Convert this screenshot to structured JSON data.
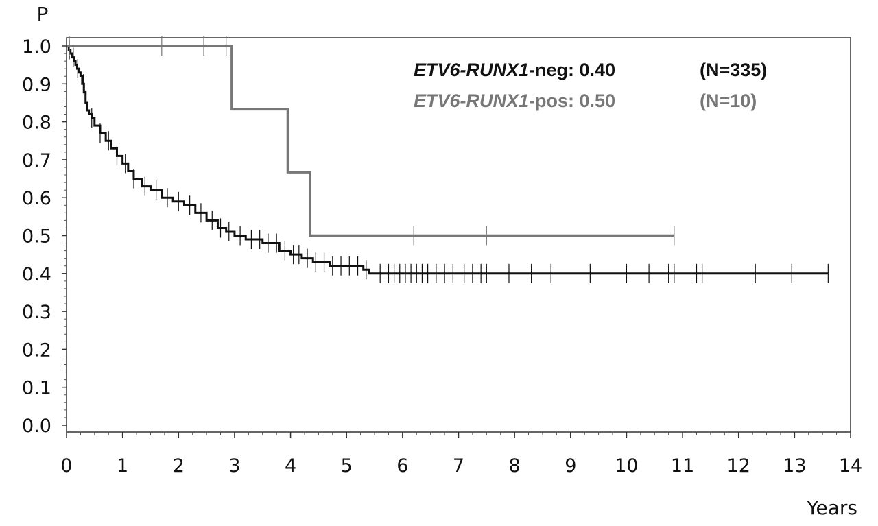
{
  "chart_data": {
    "type": "line",
    "subtype": "kaplan-meier",
    "title": "",
    "xlabel": "Years",
    "ylabel": "P",
    "xlim": [
      0,
      14
    ],
    "ylim": [
      0.0,
      1.0
    ],
    "x_ticks": [
      0,
      1,
      2,
      3,
      4,
      5,
      6,
      7,
      8,
      9,
      10,
      11,
      12,
      13,
      14
    ],
    "y_ticks": [
      "0.0",
      "0.1",
      "0.2",
      "0.3",
      "0.4",
      "0.5",
      "0.6",
      "0.7",
      "0.8",
      "0.9",
      "1.0"
    ],
    "legend_position": "top-right",
    "grid": false,
    "series": [
      {
        "legend_gene": "ETV6-RUNX1",
        "legend_suffix": "-neg: 0.40",
        "legend_n": "(N=335)",
        "color": "#111111",
        "step_x": [
          0,
          0.04,
          0.07,
          0.1,
          0.13,
          0.16,
          0.19,
          0.22,
          0.25,
          0.28,
          0.31,
          0.34,
          0.37,
          0.4,
          0.45,
          0.5,
          0.6,
          0.7,
          0.8,
          0.9,
          1.0,
          1.1,
          1.2,
          1.35,
          1.5,
          1.7,
          1.9,
          2.1,
          2.3,
          2.5,
          2.7,
          2.85,
          3.0,
          3.2,
          3.5,
          3.8,
          4.0,
          4.2,
          4.4,
          4.7,
          5.0,
          5.3,
          5.4,
          13.6
        ],
        "step_y": [
          1.0,
          0.99,
          0.98,
          0.97,
          0.96,
          0.95,
          0.94,
          0.93,
          0.92,
          0.9,
          0.88,
          0.85,
          0.83,
          0.82,
          0.81,
          0.79,
          0.77,
          0.75,
          0.73,
          0.71,
          0.69,
          0.67,
          0.65,
          0.63,
          0.62,
          0.6,
          0.59,
          0.58,
          0.56,
          0.54,
          0.52,
          0.51,
          0.5,
          0.49,
          0.48,
          0.46,
          0.45,
          0.44,
          0.43,
          0.42,
          0.42,
          0.41,
          0.4,
          0.4
        ],
        "censor_x": [
          0.05,
          0.12,
          0.2,
          0.3,
          0.45,
          0.6,
          0.75,
          0.9,
          1.05,
          1.2,
          1.4,
          1.6,
          1.8,
          2.0,
          2.2,
          2.4,
          2.6,
          2.75,
          2.9,
          3.1,
          3.3,
          3.45,
          3.6,
          3.75,
          3.9,
          4.05,
          4.15,
          4.3,
          4.45,
          4.6,
          4.75,
          4.9,
          5.05,
          5.2,
          5.35,
          5.6,
          5.75,
          5.85,
          5.95,
          6.05,
          6.15,
          6.25,
          6.35,
          6.45,
          6.6,
          6.75,
          6.9,
          7.1,
          7.25,
          7.4,
          7.5,
          7.9,
          8.3,
          8.65,
          9.35,
          10.0,
          10.4,
          10.75,
          10.85,
          11.25,
          11.35,
          12.3,
          12.95,
          13.6
        ]
      },
      {
        "legend_gene": "ETV6-RUNX1",
        "legend_suffix": "-pos: 0.50",
        "legend_n": "(N=10)",
        "color": "#777777",
        "step_x": [
          0,
          2.95,
          3.95,
          4.35,
          10.85
        ],
        "step_y": [
          1.0,
          0.833,
          0.667,
          0.5,
          0.5
        ],
        "censor_x": [
          0.05,
          1.7,
          2.45,
          2.85,
          6.2,
          7.5,
          10.85
        ]
      }
    ]
  }
}
